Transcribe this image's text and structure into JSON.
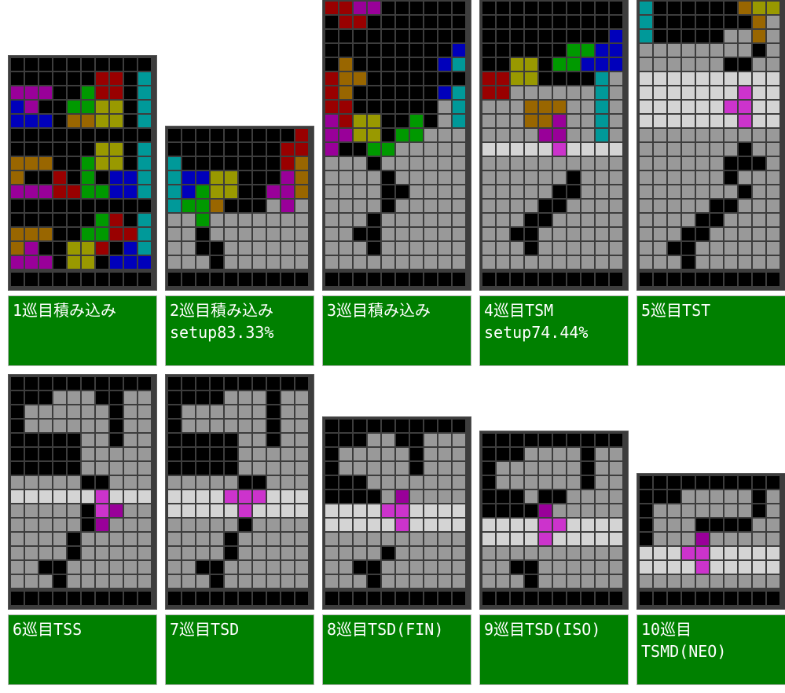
{
  "colors": {
    "empty": "#000000",
    "garbage": "#999999",
    "cleared_line": "#d4d4d4",
    "I": "#009999",
    "O": "#999900",
    "T": "#990099",
    "S": "#009900",
    "Z": "#990000",
    "J": "#0000bb",
    "L": "#996600",
    "t_placed": "#cc33cc",
    "caption_bg": "#008000",
    "caption_text": "#ffffff"
  },
  "legend": {
    ".": "empty",
    "G": "garbage",
    "W": "cleared_line",
    "I": "I",
    "O": "O",
    "T": "T",
    "S": "S",
    "Z": "Z",
    "J": "J",
    "L": "L",
    "P": "t_placed"
  },
  "panels": [
    {
      "caption": [
        "1巡目積み込み"
      ],
      "rows": [
        "..........",
        "......ZZ.I",
        "TTT..SZZ.I",
        "JT..SSOO.I",
        "JJJ.LLOO.I",
        "..........",
        "......OO.I",
        "LLL..SOO.I",
        "L..Z.S.JJI",
        "TTTZZSSJJI",
        "..........",
        "......SZ.I",
        "LLL..SSZZI",
        "LT..OOZ.JI",
        "TTT.OO.JJJ"
      ]
    },
    {
      "caption": [
        "2巡目積み込み",
        "setup83.33%"
      ],
      "rows": [
        ".........Z",
        "........ZZ",
        "I.......ZL",
        "IJJOO...TL",
        "IJSOO..TTL",
        "ISSL...GTG",
        "GGSGGGGGGG",
        "GG.GGGGGGG",
        "GG..GGGGGG",
        "GGG.GGGGGG"
      ]
    },
    {
      "caption": [
        "3巡目積み込み"
      ],
      "rows": [
        "..........",
        "..........",
        "LL........",
        ".L........",
        "OOL.......",
        "OOTT......",
        "ZZTT......",
        ".ZZ.......",
        "..........",
        ".........J",
        ".L......JI",
        "ZLL.......",
        "ZL......JI",
        "ZZ......GI",
        "TZOO..S.GI",
        "TTOO.SSGGG",
        "T..SSGGGGG",
        "GGG.GGGGGG",
        "GGGG.GGGGG",
        "GGGG..GGGG",
        "GGGG.GGGGG",
        "GGG.GGGGGG",
        "GG..GGGGGG",
        "GGG.GGGGGG",
        "GGGGGGGGGG"
      ]
    },
    {
      "caption": [
        "4巡目TSM",
        "setup74.44%"
      ],
      "rows": [
        "..........",
        "..........",
        ".........J",
        "......SSJJ",
        "..OO.SSJJJ",
        "ZZOO....IG",
        "ZZGGGGGGIG",
        "GGGLLLGGIG",
        "GGGLLTGGIG",
        "GGGGTTGGIG",
        "WWWWWPWWWW",
        "GGGGGGGGGG",
        "GGGGGG.GGG",
        "GGGGG..GGG",
        "GGGG..GGGG",
        "GGG..GGGGG",
        "GG..GGGGGG",
        "GGG.GGGGGG",
        "GGGGGGGGGG"
      ]
    },
    {
      "caption": [
        "5巡目TST"
      ],
      "rows": [
        "..........",
        "........Z.",
        ".......ZZ.",
        ".....SSZJJ",
        "I...SSLLOO",
        "I......LOO",
        "I.......LG",
        "I.....GGLG",
        "GGGGGGGG.G",
        "GGGGGG..GG",
        "WWWWWWWWWW",
        "WWWWWWWPWW",
        "WWWWWWPPWW",
        "WWWWWWWPWW",
        "GGGGGGGGGG",
        "GGGGGGG.GG",
        "GGGGGG...G",
        "GGGGGG.GGG",
        "GGGGGGG.GG",
        "GGGGG..GGG",
        "GGGG..GGGG",
        "GGG..GGGGG",
        "GG..GGGGGG",
        "GGG.GGGGGG"
      ]
    },
    {
      "caption": [
        "6巡目TSS"
      ],
      "rows": [
        "..........",
        "...GGG..GG",
        ".GGGGGG.GG",
        ".GGGGGG.GG",
        ".....GG.GG",
        ".....GGGGG",
        ".....GGGGG",
        "GGGGG..GGG",
        "WWWWWWPWWW",
        "GGGGG.PTGG",
        "GGGGG.TGGG",
        "GGGG.GGGGG",
        "GGGG.GGGGG",
        "GG..GGGGGG",
        "GGG.GGGGGG"
      ]
    },
    {
      "caption": [
        "7巡目TSD"
      ],
      "rows": [
        "..........",
        "....GGG.GG",
        ".GGGGGG.GG",
        ".GGGGGG.GG",
        ".....GG.GG",
        ".....GGGGG",
        ".....GGGGG",
        "GGGGG..GGG",
        "WWWWPPPWWW",
        "WWWWWPWWWW",
        "GGGGG.GGGG",
        "GGGG.GGGGG",
        "GGGG.GGGGG",
        "GG..GGGGGG",
        "GGG.GGGGGG"
      ]
    },
    {
      "caption": [
        "8巡目TSD(FIN)"
      ],
      "rows": [
        "..........",
        "...GG..GGG",
        ".GGGGG.GGG",
        ".GGGGG.GGG",
        "...GGGGGGG",
        "....GTGGGG",
        "WWWWPPWWWW",
        "WWWWWPWWWW",
        "GGGGGGGGGG",
        "GGGG.GGGGG",
        "GG..GGGGGG",
        "GGG.GGGGGG"
      ]
    },
    {
      "caption": [
        "9巡目TSD(ISO)"
      ],
      "rows": [
        "..........",
        "...GGGG.GG",
        ".GGGGGG.GG",
        ".GGGGGG.GG",
        "...G..GGGG",
        "....TGGGGG",
        "WWWWPPWWWW",
        "WWWWPWWWWW",
        "GGGGGGGGGG",
        "GG..GGGGGG",
        "GGG.GGGGGG"
      ]
    },
    {
      "caption": [
        "10巡目",
        "TSMD(NEO)"
      ],
      "rows": [
        "..........",
        "...GGGGG.G",
        ".GGGGGGG.G",
        ".GGG....GG",
        ".GGGTGGGGG",
        "WWWPPWWWWW",
        "WWWWPWWWWW",
        "GGGGGGGGGG"
      ]
    }
  ]
}
